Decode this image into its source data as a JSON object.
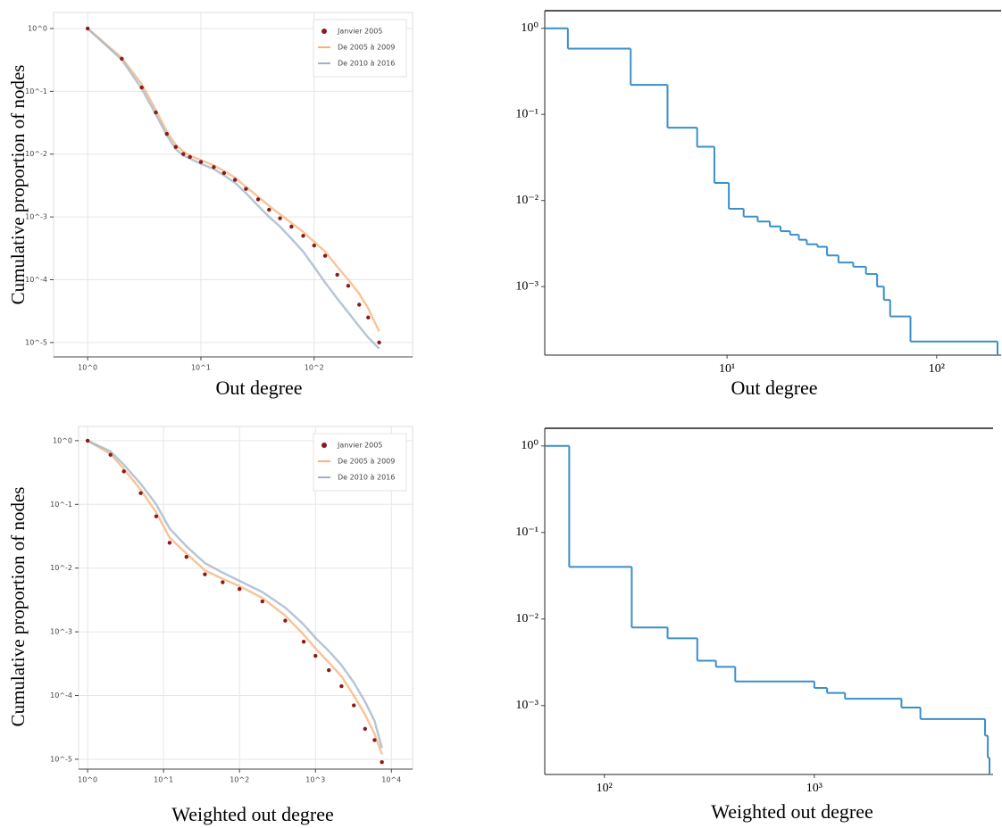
{
  "chart_data": [
    {
      "type": "line",
      "log_x": true,
      "log_y": true,
      "grid": true,
      "legend": "upper right",
      "ylabel": "Cumulative proportion of nodes",
      "xlabel": "Out degree",
      "xlim": [
        0.5,
        740
      ],
      "ylim": [
        5.9e-06,
        1.8
      ],
      "xticks": [
        {
          "value": 1,
          "label": "10^0"
        },
        {
          "value": 10,
          "label": "10^1"
        },
        {
          "value": 100,
          "label": "10^2"
        }
      ],
      "yticks": [
        {
          "value": 1,
          "label": "10^0"
        },
        {
          "value": 0.1,
          "label": "10^-1"
        },
        {
          "value": 0.01,
          "label": "10^-2"
        },
        {
          "value": 0.001,
          "label": "10^-3"
        },
        {
          "value": 0.0001,
          "label": "10^-4"
        },
        {
          "value": 1e-05,
          "label": "10^-5"
        }
      ],
      "x": [
        1,
        2,
        3,
        4,
        5,
        6,
        7,
        8,
        10,
        13,
        16,
        20,
        25,
        32,
        40,
        50,
        63,
        80,
        100,
        125,
        160,
        200,
        250,
        300,
        375
      ],
      "series": [
        {
          "name": "Janvier 2005",
          "color": "#8b1a1a",
          "style": "marker",
          "values": [
            1,
            0.33,
            0.115,
            0.046,
            0.021,
            0.013,
            0.01,
            0.009,
            0.0075,
            0.0062,
            0.005,
            0.0039,
            0.0028,
            0.0019,
            0.0013,
            0.00095,
            0.0007,
            0.0005,
            0.00035,
            0.00024,
            0.00012,
            8e-05,
            4e-05,
            2.5e-05,
            1e-05
          ]
        },
        {
          "name": "De 2005 à 2009",
          "color": "#f5b27a",
          "style": "line",
          "values": [
            1,
            0.34,
            0.13,
            0.05,
            0.023,
            0.014,
            0.011,
            0.0095,
            0.008,
            0.0066,
            0.0054,
            0.0042,
            0.003,
            0.0021,
            0.0015,
            0.0011,
            0.0008,
            0.00058,
            0.0004,
            0.00028,
            0.00016,
            0.0001,
            6e-05,
            3.5e-05,
            1.5e-05
          ]
        },
        {
          "name": "De 2010 à 2016",
          "color": "#9fb3c8",
          "style": "line",
          "values": [
            1,
            0.32,
            0.11,
            0.043,
            0.02,
            0.012,
            0.0095,
            0.0085,
            0.007,
            0.0058,
            0.0046,
            0.0035,
            0.0024,
            0.0015,
            0.001,
            0.0007,
            0.00045,
            0.00028,
            0.00016,
            9e-05,
            5e-05,
            3e-05,
            1.8e-05,
            1.2e-05,
            8e-06
          ]
        }
      ]
    },
    {
      "type": "step",
      "log_x": true,
      "log_y": true,
      "grid": false,
      "color": "#3a8fc9",
      "xlabel": "Out degree",
      "xlim": [
        1.35,
        203
      ],
      "ylim": [
        0.00016,
        1.6
      ],
      "xticks": [
        {
          "value": 10,
          "label": "10¹"
        },
        {
          "value": 100,
          "label": "10²"
        }
      ],
      "yticks": [
        {
          "value": 1,
          "label": "10⁰"
        },
        {
          "value": 0.1,
          "label": "10⁻¹"
        },
        {
          "value": 0.01,
          "label": "10⁻²"
        },
        {
          "value": 0.001,
          "label": "10⁻³"
        }
      ],
      "x": [
        1.35,
        1.74,
        3.47,
        5.2,
        7.2,
        8.7,
        10.2,
        12,
        14,
        16,
        18,
        20,
        22,
        24,
        27,
        30,
        34,
        40,
        46,
        52,
        56,
        60,
        75
      ],
      "values": [
        1,
        0.58,
        0.22,
        0.07,
        0.042,
        0.016,
        0.008,
        0.0065,
        0.0057,
        0.005,
        0.0044,
        0.004,
        0.0035,
        0.0031,
        0.0029,
        0.0023,
        0.0019,
        0.0017,
        0.0014,
        0.001,
        0.0007,
        0.00045,
        0.00023
      ]
    },
    {
      "type": "line",
      "log_x": true,
      "log_y": true,
      "grid": true,
      "legend": "upper right",
      "ylabel": "Cumulative proportion of nodes",
      "xlabel": "Weighted out degree",
      "xlim": [
        0.76,
        19000
      ],
      "ylim": [
        7e-06,
        1.67
      ],
      "xticks": [
        {
          "value": 1,
          "label": "10^0"
        },
        {
          "value": 10,
          "label": "10^1"
        },
        {
          "value": 100,
          "label": "10^2"
        },
        {
          "value": 1000,
          "label": "10^3"
        },
        {
          "value": 10000,
          "label": "10^4"
        }
      ],
      "yticks": [
        {
          "value": 1,
          "label": "10^0"
        },
        {
          "value": 0.1,
          "label": "10^-1"
        },
        {
          "value": 0.01,
          "label": "10^-2"
        },
        {
          "value": 0.001,
          "label": "10^-3"
        },
        {
          "value": 0.0001,
          "label": "10^-4"
        },
        {
          "value": 1e-05,
          "label": "10^-5"
        }
      ],
      "x": [
        1,
        2,
        3,
        5,
        8,
        12,
        20,
        35,
        60,
        100,
        200,
        400,
        700,
        1000,
        1500,
        2200,
        3200,
        4500,
        6000,
        7500
      ],
      "series": [
        {
          "name": "Janvier 2005",
          "color": "#8b1a1a",
          "style": "marker",
          "values": [
            1,
            0.6,
            0.33,
            0.15,
            0.065,
            0.025,
            0.015,
            0.008,
            0.006,
            0.0047,
            0.003,
            0.0015,
            0.0007,
            0.00042,
            0.00025,
            0.00014,
            7e-05,
            3e-05,
            2e-05,
            9e-06
          ]
        },
        {
          "name": "De 2005 à 2009",
          "color": "#f5b27a",
          "style": "line",
          "values": [
            1,
            0.62,
            0.36,
            0.17,
            0.075,
            0.03,
            0.017,
            0.0092,
            0.0068,
            0.0052,
            0.0034,
            0.0018,
            0.0009,
            0.00055,
            0.00033,
            0.0002,
            0.0001,
            5e-05,
            2.5e-05,
            1.2e-05
          ]
        },
        {
          "name": "De 2010 à 2016",
          "color": "#9fb3c8",
          "style": "line",
          "values": [
            1,
            0.68,
            0.42,
            0.21,
            0.1,
            0.042,
            0.022,
            0.012,
            0.0085,
            0.0063,
            0.0042,
            0.0024,
            0.0013,
            0.0008,
            0.0005,
            0.0003,
            0.00016,
            8e-05,
            4e-05,
            1.5e-05
          ]
        }
      ]
    },
    {
      "type": "step",
      "log_x": true,
      "log_y": true,
      "grid": false,
      "color": "#3a8fc9",
      "xlabel": "Weighted out degree",
      "xlim": [
        52,
        7100
      ],
      "ylim": [
        0.00016,
        1.6
      ],
      "xticks": [
        {
          "value": 100,
          "label": "10²"
        },
        {
          "value": 1000,
          "label": "10³"
        }
      ],
      "yticks": [
        {
          "value": 1,
          "label": "10⁰"
        },
        {
          "value": 0.1,
          "label": "10⁻¹"
        },
        {
          "value": 0.01,
          "label": "10⁻²"
        },
        {
          "value": 0.001,
          "label": "10⁻³"
        }
      ],
      "x": [
        52,
        68,
        135,
        200,
        277,
        340,
        420,
        1000,
        1150,
        1400,
        2600,
        3200,
        6500,
        6700
      ],
      "values": [
        1,
        0.04,
        0.008,
        0.006,
        0.0033,
        0.0028,
        0.0019,
        0.0016,
        0.0014,
        0.0012,
        0.00095,
        0.0007,
        0.00045,
        0.00025
      ]
    }
  ]
}
